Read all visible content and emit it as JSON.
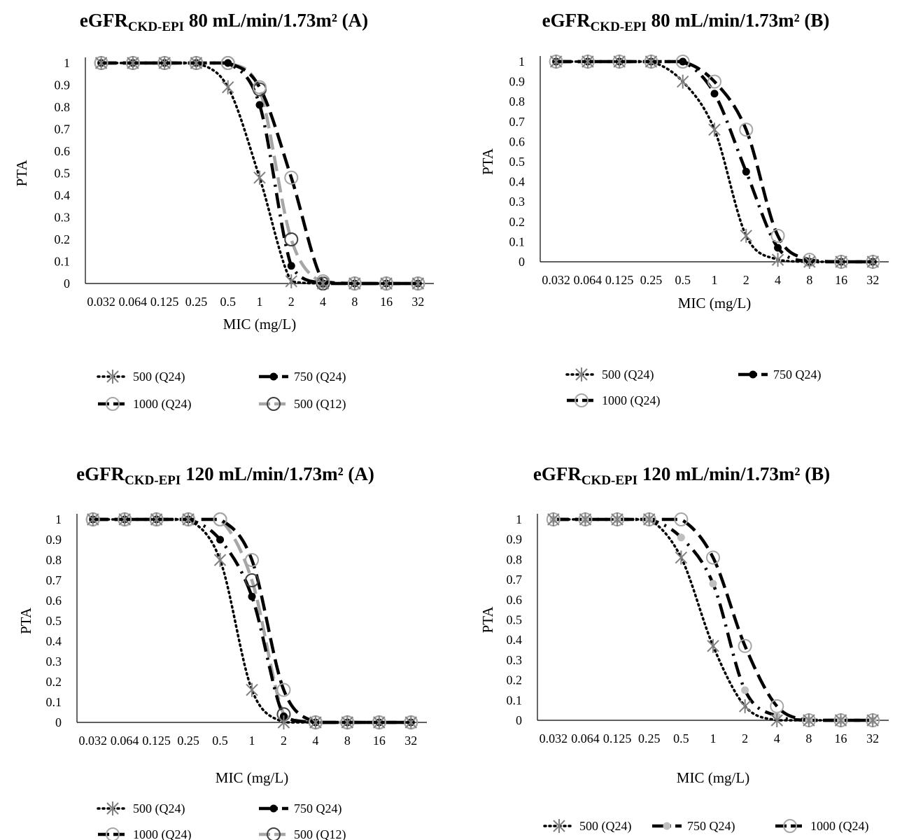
{
  "chart_data": [
    {
      "type": "line",
      "title": "eGFR",
      "title_subscript": "CKD-EPI",
      "title_suffix": " 80 mL/min/1.73m² (A)",
      "xlabel": "MIC (mg/L)",
      "ylabel": "PTA",
      "categories": [
        "0.032",
        "0.064",
        "0.125",
        "0.25",
        "0.5",
        "1",
        "2",
        "4",
        "8",
        "16",
        "32"
      ],
      "yticks": [
        "0",
        "0.1",
        "0.2",
        "0.3",
        "0.4",
        "0.5",
        "0.6",
        "0.7",
        "0.8",
        "0.9",
        "1"
      ],
      "ylim": [
        0,
        1
      ],
      "grid": false,
      "legend_position": "bottom",
      "series": [
        {
          "name": "500 (Q24)",
          "values": [
            1,
            1,
            1,
            1,
            0.89,
            0.48,
            0.01,
            0,
            0,
            0,
            0
          ],
          "color": "#000000",
          "dash": "dotted",
          "marker": "star",
          "marker_color": "#808080"
        },
        {
          "name": "750 (Q24)",
          "values": [
            1,
            1,
            1,
            1,
            1,
            0.81,
            0.08,
            0,
            0,
            0,
            0
          ],
          "color": "#000000",
          "dash": "dashdot",
          "marker": "filled-circle",
          "marker_color": "#000000"
        },
        {
          "name": "1000 (Q24)",
          "values": [
            1,
            1,
            1,
            1,
            1,
            0.89,
            0.48,
            0.01,
            0,
            0,
            0
          ],
          "color": "#000000",
          "dash": "dash",
          "marker": "open-circle",
          "marker_color": "#a6a6a6"
        },
        {
          "name": "500 (Q12)",
          "values": [
            1,
            1,
            1,
            1,
            1,
            0.88,
            0.2,
            0,
            0,
            0,
            0
          ],
          "color": "#a6a6a6",
          "dash": "dash",
          "marker": "open-circle",
          "marker_color": "#404040"
        }
      ]
    },
    {
      "type": "line",
      "title": "eGFR",
      "title_subscript": "CKD-EPI",
      "title_suffix": " 80 mL/min/1.73m² (B)",
      "xlabel": "MIC (mg/L)",
      "ylabel": "PTA",
      "categories": [
        "0.032",
        "0.064",
        "0.125",
        "0.25",
        "0.5",
        "1",
        "2",
        "4",
        "8",
        "16",
        "32"
      ],
      "yticks": [
        "0",
        "0.1",
        "0.2",
        "0.3",
        "0.4",
        "0.5",
        "0.6",
        "0.7",
        "0.8",
        "0.9",
        "1"
      ],
      "ylim": [
        0,
        1
      ],
      "grid": false,
      "legend_position": "bottom",
      "series": [
        {
          "name": "500 (Q24)",
          "values": [
            1,
            1,
            1,
            1,
            0.9,
            0.66,
            0.13,
            0.01,
            0,
            0,
            0
          ],
          "color": "#000000",
          "dash": "dotted",
          "marker": "star",
          "marker_color": "#808080"
        },
        {
          "name": "750 Q24)",
          "values": [
            1,
            1,
            1,
            1,
            1,
            0.84,
            0.45,
            0.07,
            0,
            0,
            0
          ],
          "color": "#000000",
          "dash": "dashdot",
          "marker": "filled-circle",
          "marker_color": "#000000"
        },
        {
          "name": "1000 (Q24)",
          "values": [
            1,
            1,
            1,
            1,
            1,
            0.9,
            0.66,
            0.13,
            0.01,
            0,
            0
          ],
          "color": "#000000",
          "dash": "dash",
          "marker": "open-circle",
          "marker_color": "#a6a6a6"
        }
      ]
    },
    {
      "type": "line",
      "title": "eGFR",
      "title_subscript": "CKD-EPI",
      "title_suffix": " 120 mL/min/1.73m² (A)",
      "xlabel": "MIC (mg/L)",
      "ylabel": "PTA",
      "categories": [
        "0.032",
        "0.064",
        "0.125",
        "0.25",
        "0.5",
        "1",
        "2",
        "4",
        "8",
        "16",
        "32"
      ],
      "yticks": [
        "0",
        "0.1",
        "0.2",
        "0.3",
        "0.4",
        "0.5",
        "0.6",
        "0.7",
        "0.8",
        "0.9",
        "1"
      ],
      "ylim": [
        0,
        1
      ],
      "grid": false,
      "legend_position": "bottom",
      "series": [
        {
          "name": "500 (Q24)",
          "values": [
            1,
            1,
            1,
            1,
            0.8,
            0.16,
            0,
            0,
            0,
            0,
            0
          ],
          "color": "#000000",
          "dash": "dotted",
          "marker": "star",
          "marker_color": "#808080"
        },
        {
          "name": "750 Q24)",
          "values": [
            1,
            1,
            1,
            1,
            0.9,
            0.62,
            0.03,
            0,
            0,
            0,
            0
          ],
          "color": "#000000",
          "dash": "dashdot",
          "marker": "filled-circle",
          "marker_color": "#000000"
        },
        {
          "name": "1000 (Q24)",
          "values": [
            1,
            1,
            1,
            1,
            1,
            0.8,
            0.16,
            0,
            0,
            0,
            0
          ],
          "color": "#000000",
          "dash": "dash",
          "marker": "open-circle",
          "marker_color": "#a6a6a6"
        },
        {
          "name": "500 (Q12)",
          "values": [
            1,
            1,
            1,
            1,
            1,
            0.7,
            0.04,
            0,
            0,
            0,
            0
          ],
          "color": "#a6a6a6",
          "dash": "dash",
          "marker": "open-circle",
          "marker_color": "#404040"
        }
      ]
    },
    {
      "type": "line",
      "title": "eGFR",
      "title_subscript": "CKD-EPI",
      "title_suffix": " 120 mL/min/1.73m² (B)",
      "xlabel": "MIC (mg/L)",
      "ylabel": "PTA",
      "categories": [
        "0.032",
        "0.064",
        "0.125",
        "0.25",
        "0.5",
        "1",
        "2",
        "4",
        "8",
        "16",
        "32"
      ],
      "yticks": [
        "0",
        "0.1",
        "0.2",
        "0.3",
        "0.4",
        "0.5",
        "0.6",
        "0.7",
        "0.8",
        "0.9",
        "1"
      ],
      "ylim": [
        0,
        1
      ],
      "grid": false,
      "legend_position": "bottom",
      "series": [
        {
          "name": "500 (Q24)",
          "values": [
            1,
            1,
            1,
            1,
            0.81,
            0.37,
            0.07,
            0,
            0,
            0,
            0
          ],
          "color": "#000000",
          "dash": "dotted",
          "marker": "star",
          "marker_color": "#808080"
        },
        {
          "name": "750 Q24)",
          "values": [
            1,
            1,
            1,
            1,
            0.91,
            0.68,
            0.15,
            0.02,
            0,
            0,
            0
          ],
          "color": "#000000",
          "dash": "dashdot",
          "marker": "filled-circle",
          "marker_color": "#bfbfbf"
        },
        {
          "name": "1000 (Q24)",
          "values": [
            1,
            1,
            1,
            1,
            1,
            0.81,
            0.37,
            0.07,
            0,
            0,
            0
          ],
          "color": "#000000",
          "dash": "dash",
          "marker": "open-circle",
          "marker_color": "#a6a6a6"
        }
      ]
    }
  ]
}
